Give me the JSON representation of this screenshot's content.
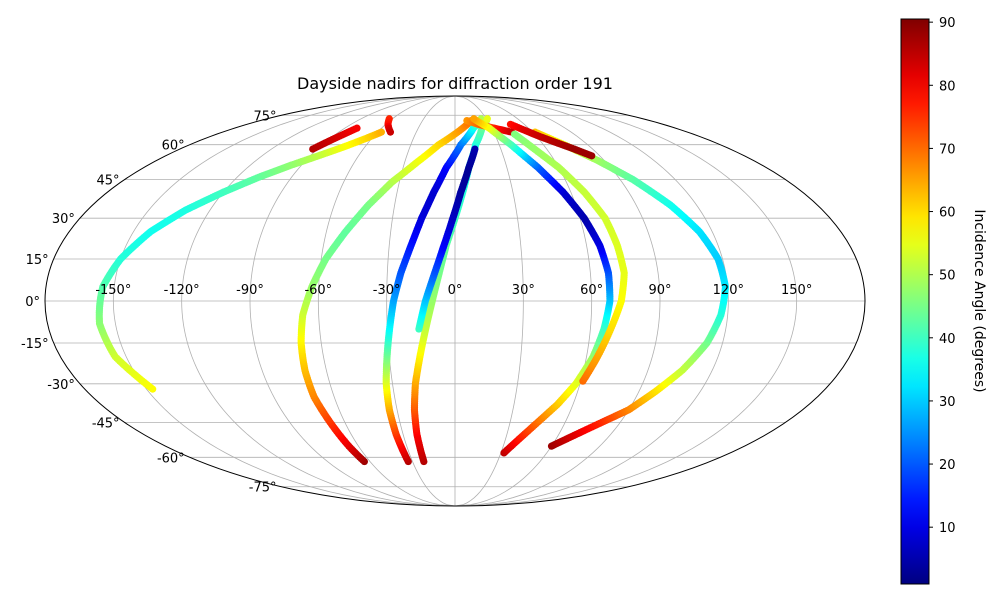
{
  "chart_data": {
    "type": "scatter",
    "projection": "mollweide",
    "title": "Dayside nadirs for diffraction order 191",
    "longitude_ticks": [
      -150,
      -120,
      -90,
      -60,
      -30,
      0,
      30,
      60,
      90,
      120,
      150
    ],
    "longitude_tick_labels": [
      "-150°",
      "-120°",
      "-90°",
      "-60°",
      "-30°",
      "0°",
      "30°",
      "60°",
      "90°",
      "120°",
      "150°"
    ],
    "latitude_ticks": [
      75,
      60,
      45,
      30,
      15,
      0,
      -15,
      -30,
      -45,
      -60,
      -75
    ],
    "latitude_tick_labels": [
      "75°",
      "60°",
      "45°",
      "30°",
      "15°",
      "0°",
      "-15°",
      "-30°",
      "-45°",
      "-60°",
      "-75°"
    ],
    "grid": true,
    "colormap": "jet",
    "colorbar": {
      "label": "Incidence Angle (degrees)",
      "range": [
        1,
        90.5
      ],
      "ticks": [
        10,
        20,
        30,
        40,
        50,
        60,
        70,
        80,
        90
      ],
      "tick_labels": [
        "10",
        "20",
        "30",
        "40",
        "50",
        "60",
        "70",
        "80",
        "90"
      ]
    },
    "series": [
      {
        "points": [
          [
            -147,
            -32
          ],
          [
            -155,
            -20
          ],
          [
            -157,
            -8
          ],
          [
            -155,
            5
          ],
          [
            -150,
            15
          ],
          [
            -142,
            25
          ],
          [
            -132,
            33
          ],
          [
            -120,
            40
          ],
          [
            -108,
            46
          ],
          [
            -96,
            51
          ],
          [
            -85,
            55
          ],
          [
            -74,
            59
          ],
          [
            -64,
            63
          ],
          [
            -57,
            66
          ]
        ],
        "incidence": [
          57,
          53,
          47,
          42,
          38,
          36,
          37,
          40,
          43,
          47,
          51,
          56,
          60,
          64
        ]
      },
      {
        "points": [
          [
            -64,
            -62
          ],
          [
            -66,
            -55
          ],
          [
            -68,
            -45
          ],
          [
            -70,
            -35
          ],
          [
            -70,
            -25
          ],
          [
            -69,
            -15
          ],
          [
            -67,
            -5
          ],
          [
            -63,
            5
          ],
          [
            -58,
            15
          ],
          [
            -51,
            25
          ],
          [
            -43,
            35
          ],
          [
            -34,
            44
          ],
          [
            -23,
            52
          ],
          [
            -11,
            60
          ],
          [
            2,
            66
          ],
          [
            15,
            72
          ]
        ],
        "incidence": [
          88,
          82,
          75,
          68,
          63,
          58,
          53,
          48,
          45,
          43,
          45,
          50,
          55,
          60,
          65,
          70
        ]
      },
      {
        "points": [
          [
            -33,
            -62
          ],
          [
            -34,
            -50
          ],
          [
            -34,
            -40
          ],
          [
            -33,
            -30
          ],
          [
            -31,
            -20
          ],
          [
            -29,
            -10
          ],
          [
            -27,
            0
          ],
          [
            -24,
            10
          ],
          [
            -20,
            20
          ],
          [
            -16,
            30
          ],
          [
            -11,
            40
          ],
          [
            -5,
            50
          ],
          [
            4,
            60
          ],
          [
            15,
            68
          ],
          [
            25,
            73
          ]
        ],
        "incidence": [
          86,
          75,
          65,
          55,
          45,
          35,
          27,
          20,
          14,
          9,
          8,
          12,
          22,
          35,
          50
        ]
      },
      {
        "points": [
          [
            -22,
            -62
          ],
          [
            -22,
            -50
          ],
          [
            -21,
            -40
          ],
          [
            -19,
            -30
          ],
          [
            -16,
            -20
          ],
          [
            -13,
            -10
          ],
          [
            -10,
            0
          ],
          [
            -7,
            10
          ],
          [
            -4,
            20
          ],
          [
            0,
            30
          ],
          [
            4,
            40
          ],
          [
            8,
            50
          ],
          [
            14,
            60
          ],
          [
            22,
            68
          ],
          [
            31,
            73
          ]
        ],
        "incidence": [
          86,
          80,
          72,
          65,
          58,
          52,
          48,
          45,
          43,
          40,
          38,
          36,
          37,
          43,
          55
        ]
      },
      {
        "points": [
          [
            -16,
            -10
          ],
          [
            -13,
            0
          ],
          [
            -9,
            10
          ],
          [
            -5,
            20
          ],
          [
            -1,
            30
          ],
          [
            3,
            40
          ],
          [
            8,
            50
          ],
          [
            13,
            58
          ]
        ],
        "incidence": [
          40,
          30,
          20,
          12,
          7,
          4,
          3,
          5
        ]
      },
      {
        "points": [
          [
            11,
            72
          ],
          [
            20,
            70
          ],
          [
            32,
            68
          ],
          [
            44,
            66
          ]
        ],
        "incidence": [
          66,
          70,
          76,
          84
        ]
      },
      {
        "points": [
          [
            32,
            -58
          ],
          [
            38,
            -52
          ],
          [
            45,
            -45
          ],
          [
            52,
            -38
          ],
          [
            58,
            -30
          ],
          [
            63,
            -20
          ],
          [
            66,
            -10
          ],
          [
            68,
            0
          ],
          [
            68,
            10
          ],
          [
            66,
            20
          ],
          [
            62,
            30
          ],
          [
            56,
            40
          ],
          [
            48,
            50
          ],
          [
            38,
            60
          ],
          [
            28,
            68
          ],
          [
            18,
            73
          ]
        ],
        "incidence": [
          85,
          78,
          70,
          62,
          55,
          48,
          40,
          30,
          20,
          10,
          5,
          8,
          20,
          40,
          55,
          65
        ]
      },
      {
        "points": [
          [
            61,
            -29
          ],
          [
            65,
            -20
          ],
          [
            69,
            -10
          ],
          [
            73,
            0
          ],
          [
            75,
            10
          ],
          [
            74,
            20
          ],
          [
            72,
            30
          ],
          [
            67,
            40
          ],
          [
            60,
            50
          ],
          [
            52,
            58
          ],
          [
            45,
            65
          ]
        ],
        "incidence": [
          70,
          65,
          60,
          57,
          55,
          54,
          53,
          52,
          50,
          48,
          46
        ]
      },
      {
        "points": [
          [
            60,
            -55
          ],
          [
            70,
            -50
          ],
          [
            80,
            -45
          ],
          [
            90,
            -40
          ],
          [
            98,
            -33
          ],
          [
            106,
            -25
          ],
          [
            113,
            -15
          ],
          [
            117,
            -5
          ],
          [
            119,
            5
          ],
          [
            118,
            15
          ],
          [
            114,
            25
          ],
          [
            107,
            35
          ],
          [
            97,
            45
          ],
          [
            86,
            53
          ],
          [
            74,
            60
          ],
          [
            62,
            66
          ]
        ],
        "incidence": [
          88,
          82,
          76,
          68,
          60,
          52,
          45,
          38,
          33,
          30,
          32,
          36,
          42,
          48,
          55,
          62
        ]
      },
      {
        "points": [
          [
            -93,
            58
          ],
          [
            -88,
            62
          ],
          [
            -84,
            65
          ],
          [
            -80,
            68
          ]
        ],
        "incidence": [
          86,
          84,
          82,
          80
        ]
      },
      {
        "points": [
          [
            -63,
            73
          ],
          [
            -58,
            70
          ],
          [
            -54,
            68
          ],
          [
            -50,
            66
          ]
        ],
        "incidence": [
          76,
          78,
          82,
          84
        ]
      },
      {
        "points": [
          [
            48,
            70
          ],
          [
            55,
            67
          ],
          [
            62,
            64
          ],
          [
            70,
            61
          ],
          [
            78,
            58
          ],
          [
            85,
            55
          ]
        ],
        "incidence": [
          78,
          82,
          84,
          86,
          88,
          88
        ]
      }
    ]
  }
}
